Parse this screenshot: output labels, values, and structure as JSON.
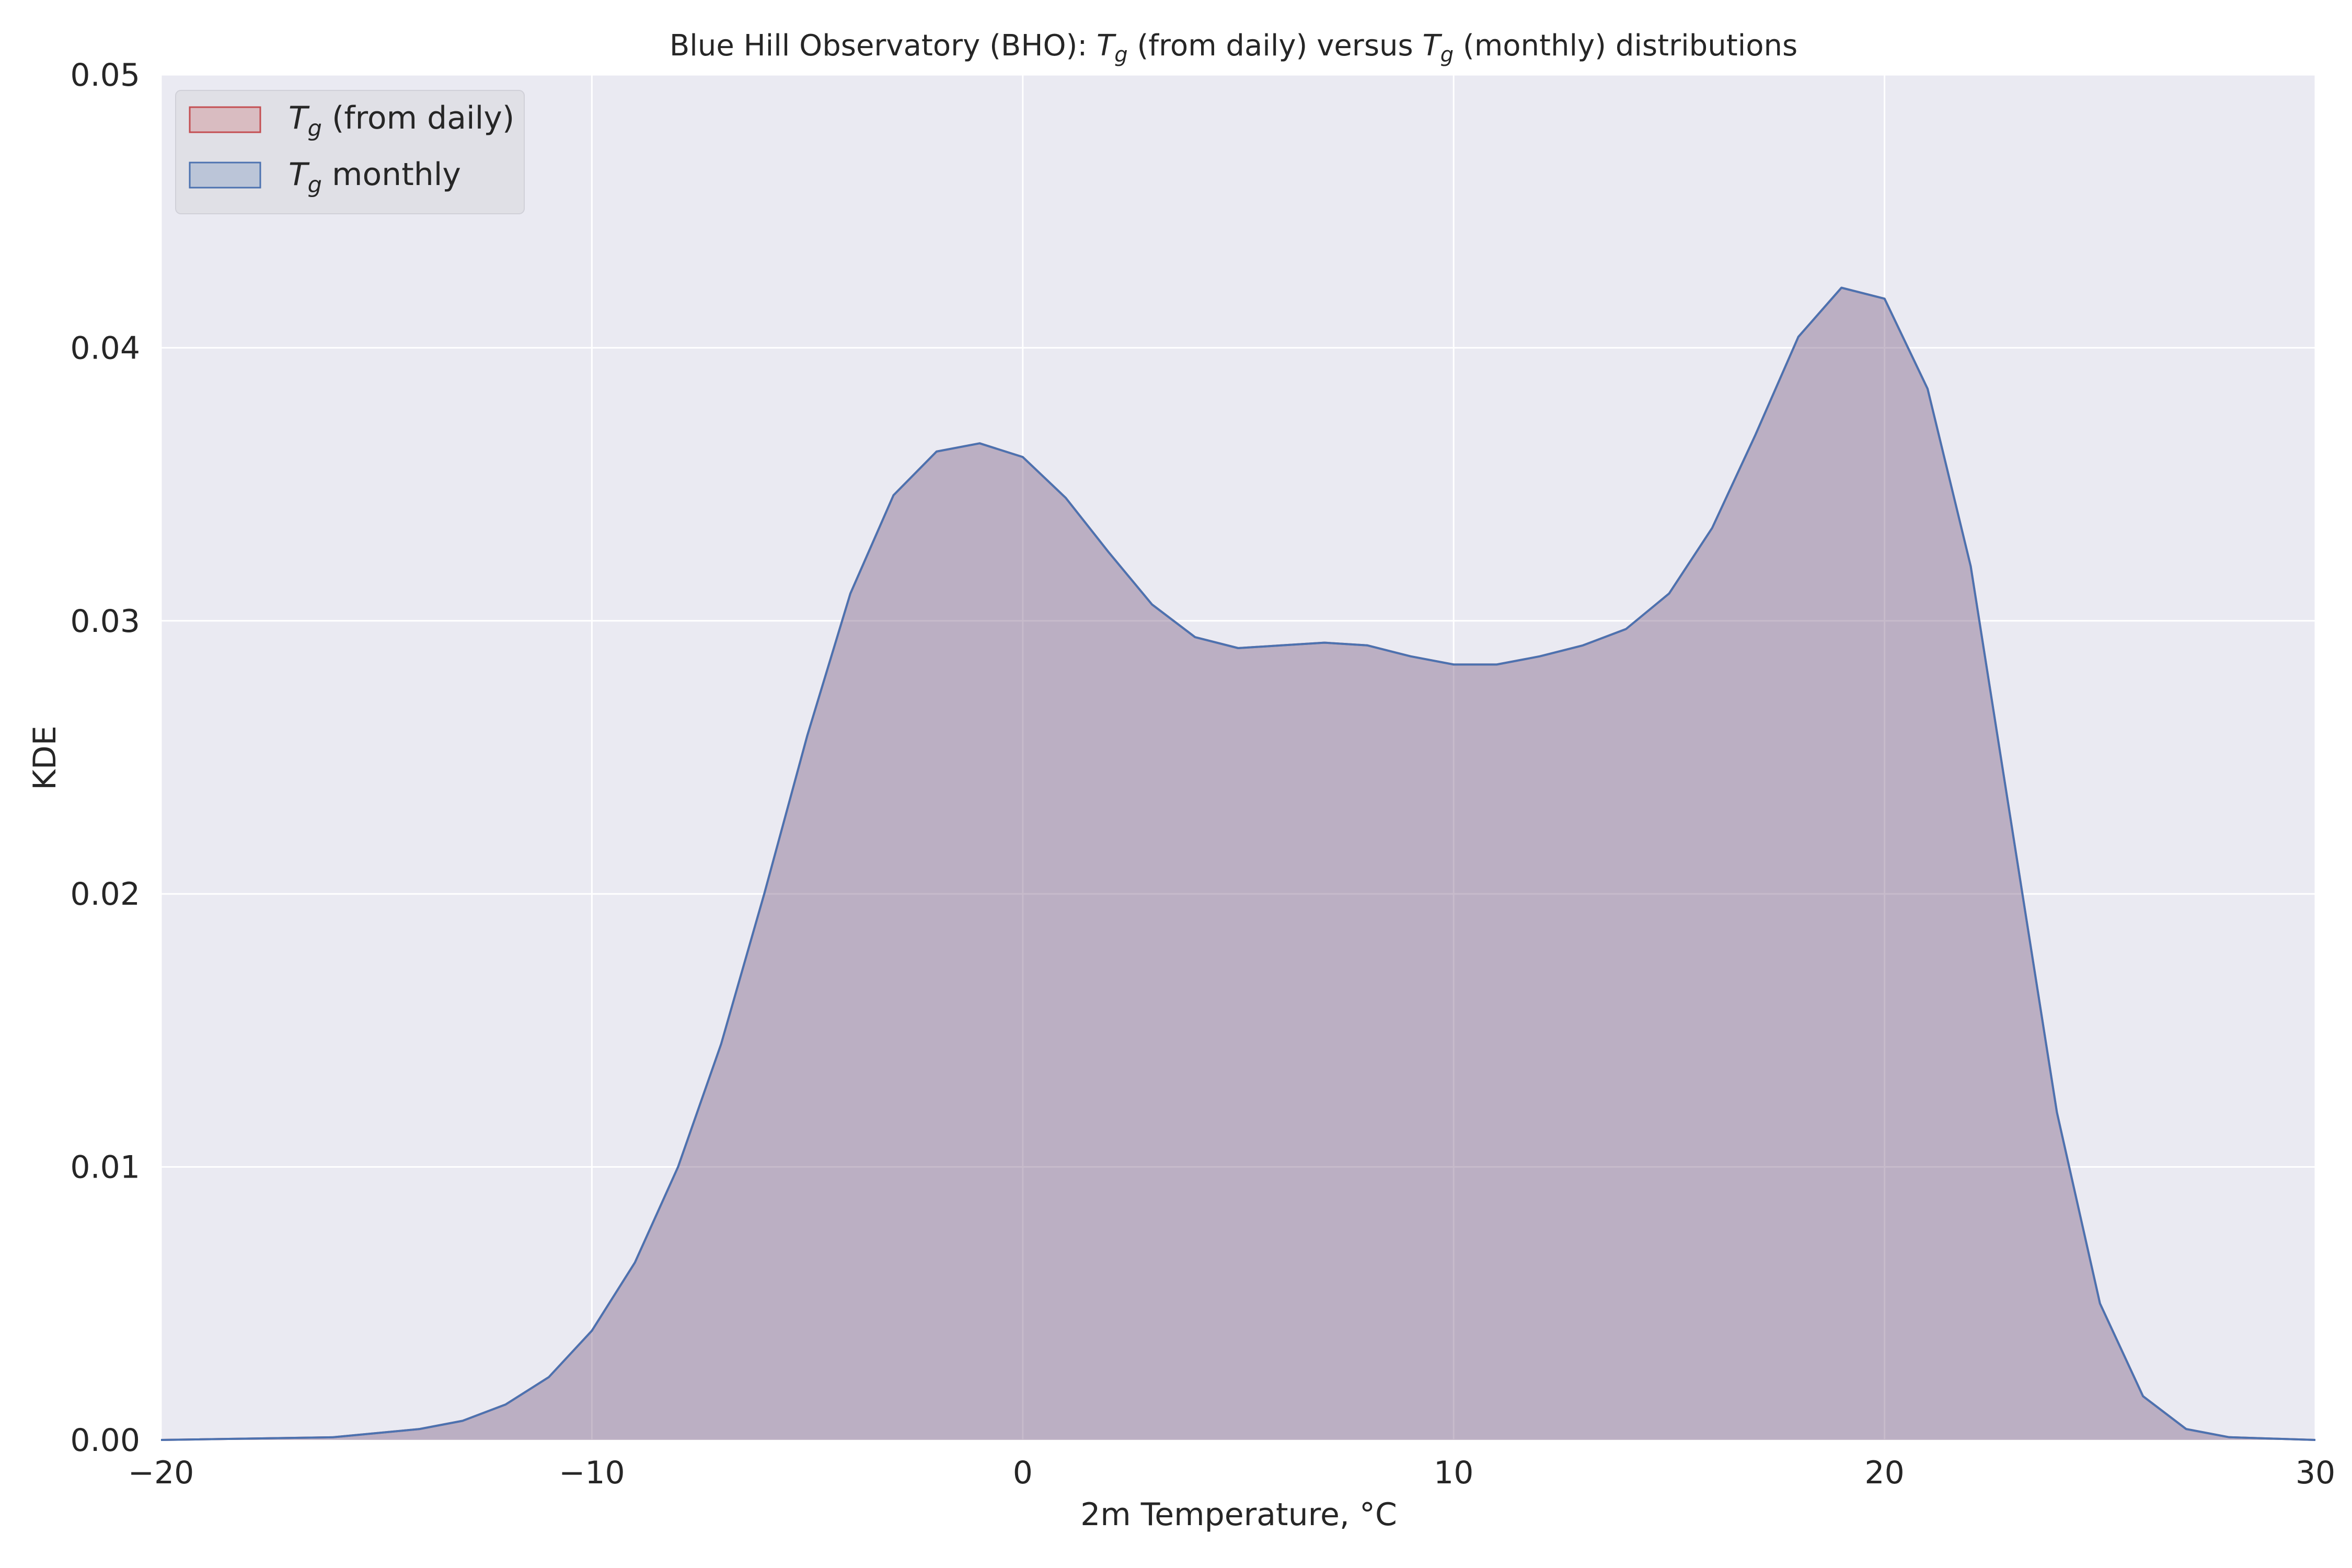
{
  "chart_data": {
    "type": "area",
    "title": {
      "prefix": "Blue Hill Observatory (BHO): ",
      "var1": "T",
      "sub1": "g",
      "middle": " (from daily) versus ",
      "var2": "T",
      "sub2": "g",
      "suffix": " (monthly) distributions"
    },
    "xlabel": "2m Temperature, °C",
    "ylabel": "KDE",
    "xlim": [
      -20,
      30
    ],
    "ylim": [
      0,
      0.05
    ],
    "x_ticks": [
      -20,
      -10,
      0,
      10,
      20,
      30
    ],
    "x_tick_labels": [
      "−20",
      "−10",
      "0",
      "10",
      "20",
      "30"
    ],
    "y_ticks": [
      0,
      0.01,
      0.02,
      0.03,
      0.04,
      0.05
    ],
    "y_tick_labels": [
      "0.00",
      "0.01",
      "0.02",
      "0.03",
      "0.04",
      "0.05"
    ],
    "grid": true,
    "legend_position": "top-left",
    "colors": {
      "background": "#eaeaf2",
      "grid": "#ffffff",
      "daily_fill": "#c44e52",
      "daily_line": "#c44e52",
      "monthly_fill": "#4c72b0",
      "monthly_line": "#4c72b0",
      "legend_bg": "#e0e0e6"
    },
    "series": [
      {
        "name": {
          "var": "T",
          "sub": "g",
          "rest": " (from daily)"
        },
        "color": "#c44e52",
        "x": [
          -20,
          -16,
          -14,
          -13,
          -12,
          -11,
          -10,
          -9,
          -8,
          -7,
          -6,
          -5,
          -4,
          -3,
          -2,
          -1,
          0,
          1,
          2,
          3,
          4,
          5,
          6,
          7,
          8,
          9,
          10,
          11,
          12,
          13,
          14,
          15,
          16,
          17,
          18,
          19,
          20,
          21,
          22,
          23,
          24,
          25,
          26,
          27,
          28,
          30
        ],
        "y": [
          0,
          0.0001,
          0.0004,
          0.0007,
          0.0013,
          0.0023,
          0.004,
          0.0065,
          0.01,
          0.0145,
          0.02,
          0.0258,
          0.031,
          0.0346,
          0.0362,
          0.0365,
          0.036,
          0.0345,
          0.0325,
          0.0306,
          0.0294,
          0.029,
          0.0291,
          0.0292,
          0.0291,
          0.0287,
          0.0284,
          0.0284,
          0.0287,
          0.0291,
          0.0297,
          0.031,
          0.0334,
          0.0368,
          0.0404,
          0.0422,
          0.0418,
          0.0385,
          0.032,
          0.022,
          0.012,
          0.005,
          0.0016,
          0.0004,
          0.0001,
          0
        ]
      },
      {
        "name": {
          "var": "T",
          "sub": "g",
          "rest": " monthly"
        },
        "color": "#4c72b0",
        "x": [
          -20,
          -16,
          -14,
          -13,
          -12,
          -11,
          -10,
          -9,
          -8,
          -7,
          -6,
          -5,
          -4,
          -3,
          -2,
          -1,
          0,
          1,
          2,
          3,
          4,
          5,
          6,
          7,
          8,
          9,
          10,
          11,
          12,
          13,
          14,
          15,
          16,
          17,
          18,
          19,
          20,
          21,
          22,
          23,
          24,
          25,
          26,
          27,
          28,
          30
        ],
        "y": [
          0,
          0.0001,
          0.0004,
          0.0007,
          0.0013,
          0.0023,
          0.004,
          0.0065,
          0.01,
          0.0145,
          0.02,
          0.0258,
          0.031,
          0.0346,
          0.0362,
          0.0365,
          0.036,
          0.0345,
          0.0325,
          0.0306,
          0.0294,
          0.029,
          0.0291,
          0.0292,
          0.0291,
          0.0287,
          0.0284,
          0.0284,
          0.0287,
          0.0291,
          0.0297,
          0.031,
          0.0334,
          0.0368,
          0.0404,
          0.0422,
          0.0418,
          0.0385,
          0.032,
          0.022,
          0.012,
          0.005,
          0.0016,
          0.0004,
          0.0001,
          0
        ]
      }
    ]
  }
}
